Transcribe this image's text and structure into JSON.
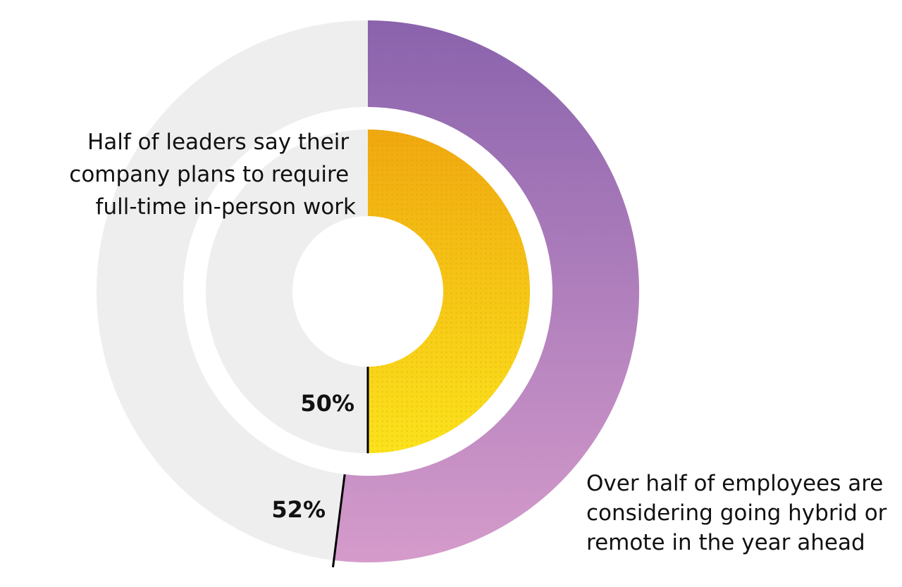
{
  "chart_data": {
    "type": "pie",
    "style": "nested donut",
    "rings": [
      {
        "ring": "outer",
        "value_percent": 52,
        "value_label": "52%",
        "annotation": [
          "Over half of employees are",
          "considering going hybrid or",
          "remote in the year ahead"
        ],
        "fill_gradient": [
          "#8a63ad",
          "#d59bcb"
        ],
        "track_color": "#eeeeee"
      },
      {
        "ring": "inner",
        "value_percent": 50,
        "value_label": "50%",
        "annotation": [
          "Half of leaders say their",
          "company plans to require",
          "full-time in-person work"
        ],
        "fill_gradient": [
          "#f0a810",
          "#fbe31c"
        ],
        "pattern": "dotted",
        "track_color": "#eeeeee"
      }
    ]
  }
}
